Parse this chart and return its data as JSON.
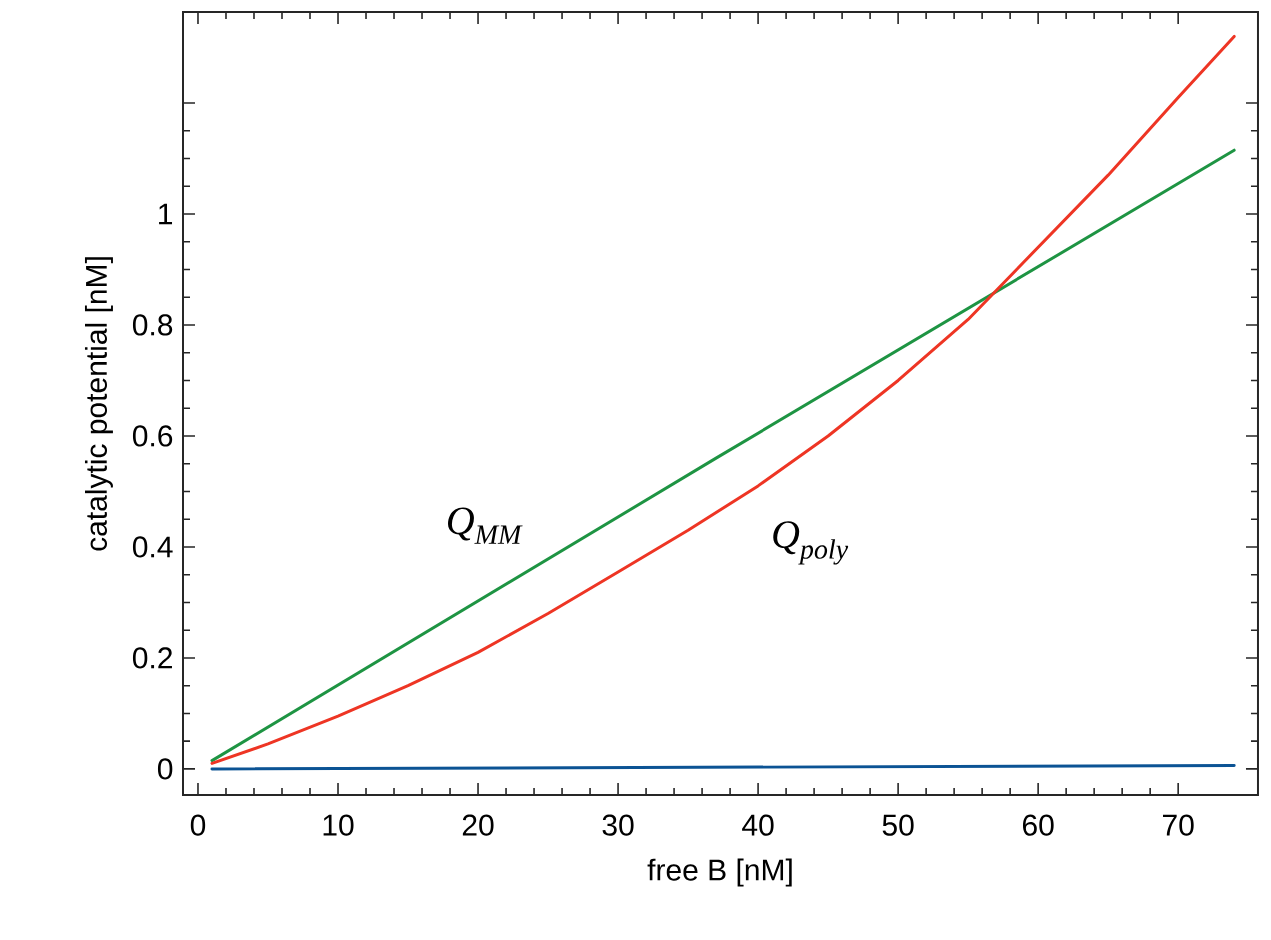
{
  "chart_data": {
    "type": "line",
    "xlabel": "free B [nM]",
    "ylabel": "catalytic potential [nM]",
    "xlim": [
      -1.07,
      75.7
    ],
    "ylim": [
      -0.047,
      1.364
    ],
    "xticks": [
      0,
      10,
      20,
      30,
      40,
      50,
      60,
      70
    ],
    "yticks": [
      0,
      0.2,
      0.4,
      0.6,
      0.8,
      1,
      {
        "value": 1.2,
        "label": null
      }
    ],
    "grid": false,
    "legend": false,
    "marker": "none",
    "line_style": "solid",
    "series": [
      {
        "name": "Q$_{MM}$",
        "color": "#1e9443",
        "x": [
          1,
          37,
          74
        ],
        "values": [
          0.015,
          0.56,
          1.115
        ]
      },
      {
        "name": "Q$_{poly}$",
        "color": "#ee3524",
        "x": [
          1,
          5,
          10,
          15,
          20,
          25,
          30,
          35,
          40,
          45,
          50,
          55,
          60,
          65,
          70,
          74
        ],
        "values": [
          0.01,
          0.045,
          0.095,
          0.15,
          0.21,
          0.28,
          0.355,
          0.43,
          0.51,
          0.6,
          0.7,
          0.81,
          0.94,
          1.07,
          1.21,
          1.32
        ]
      },
      {
        "color": "#0b5394",
        "x": [
          1,
          74
        ],
        "values": [
          0.0,
          0.006
        ]
      }
    ]
  }
}
